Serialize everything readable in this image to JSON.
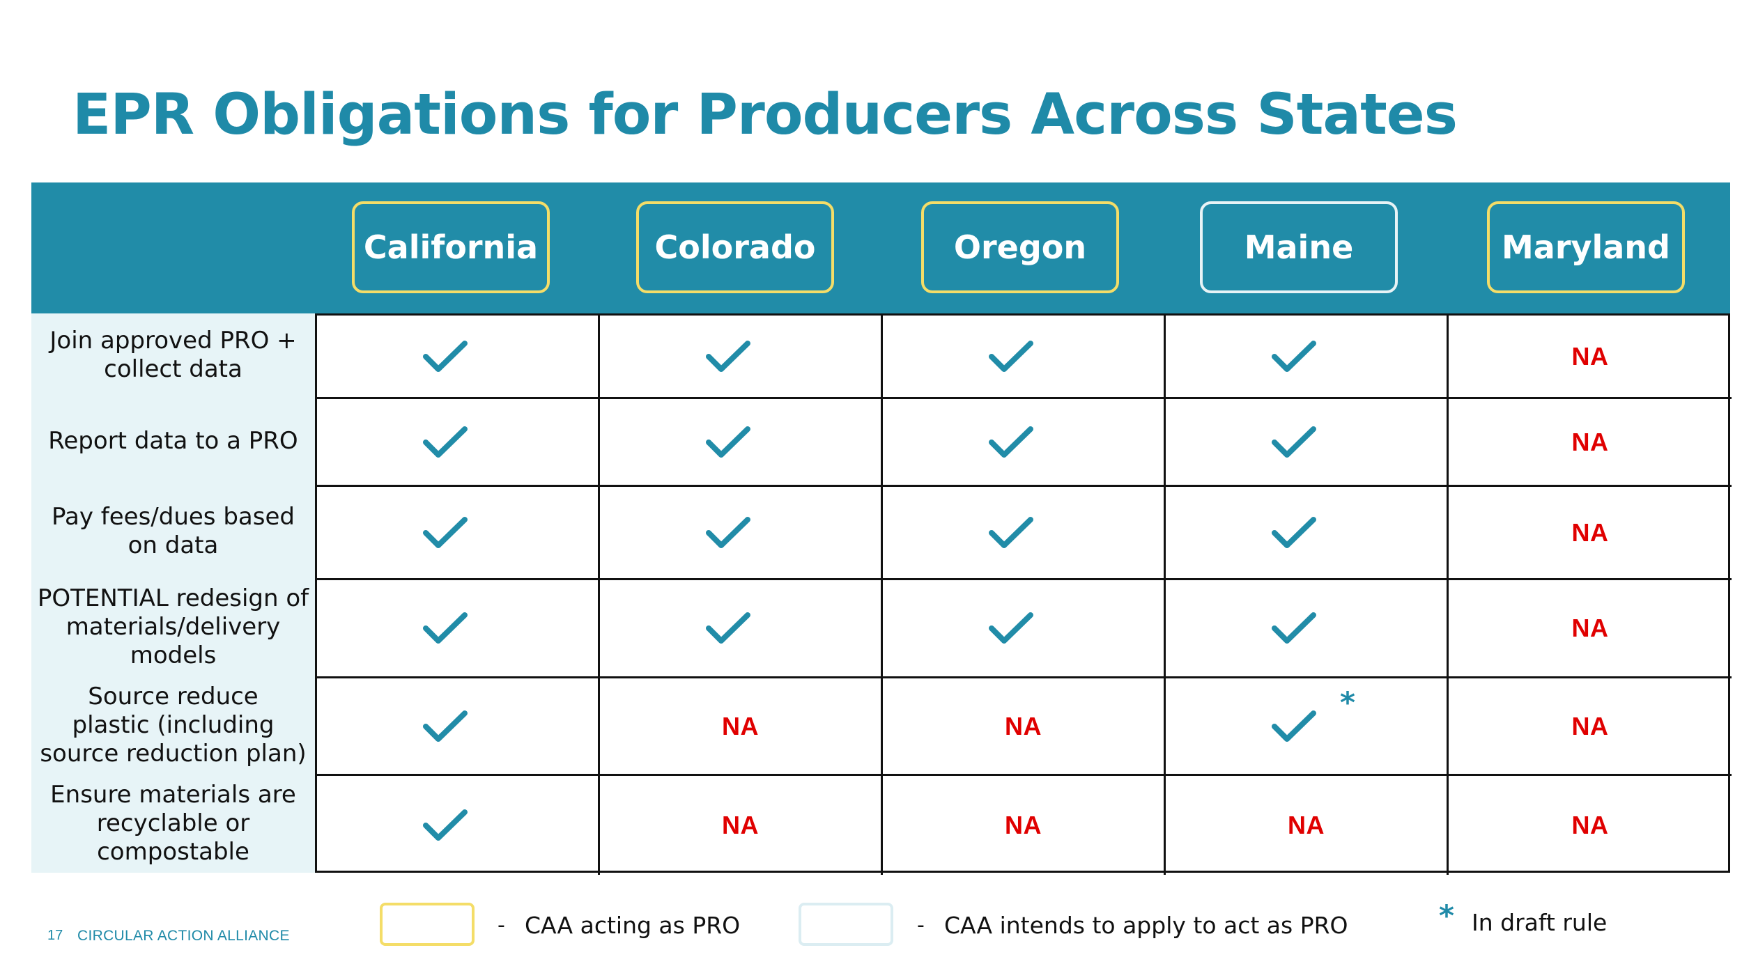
{
  "slide": {
    "title": "EPR Obligations for Producers Across States",
    "page_number": "17",
    "organization": "CIRCULAR ACTION ALLIANCE"
  },
  "states": [
    {
      "label": "California",
      "status": "pro"
    },
    {
      "label": "Colorado",
      "status": "pro"
    },
    {
      "label": "Oregon",
      "status": "pro"
    },
    {
      "label": "Maine",
      "status": "intends"
    },
    {
      "label": "Maryland",
      "status": "pro"
    }
  ],
  "rows": [
    {
      "label": "Join approved PRO +\ncollect data",
      "cells": [
        "check",
        "check",
        "check",
        "check",
        "NA"
      ]
    },
    {
      "label": "Report data to a PRO",
      "cells": [
        "check",
        "check",
        "check",
        "check",
        "NA"
      ]
    },
    {
      "label": "Pay fees/dues based\non data",
      "cells": [
        "check",
        "check",
        "check",
        "check",
        "NA"
      ]
    },
    {
      "label": "POTENTIAL redesign of\nmaterials/delivery\nmodels",
      "cells": [
        "check",
        "check",
        "check",
        "check",
        "NA"
      ]
    },
    {
      "label": "Source reduce\nplastic (including\nsource reduction plan)",
      "cells": [
        "check",
        "NA",
        "NA",
        "check*",
        "NA"
      ]
    },
    {
      "label": "Ensure materials are\nrecyclable or\ncompostable",
      "cells": [
        "check",
        "NA",
        "NA",
        "NA",
        "NA"
      ]
    }
  ],
  "legend": {
    "pro_dash": "-",
    "pro_label": "CAA acting as PRO",
    "apply_dash": "-",
    "apply_label": "CAA intends to apply to act as PRO",
    "draft_symbol": "*",
    "draft_label": "In draft rule"
  },
  "colors": {
    "teal": "#218ca8",
    "title": "#1f8aa8",
    "pro_border": "#f4dd68",
    "intends_border": "#e8f3f6",
    "na_red": "#e00000",
    "label_panel": "#e7f4f7"
  },
  "icons": {
    "check": "checkmark-icon",
    "draft": "asterisk-icon"
  }
}
